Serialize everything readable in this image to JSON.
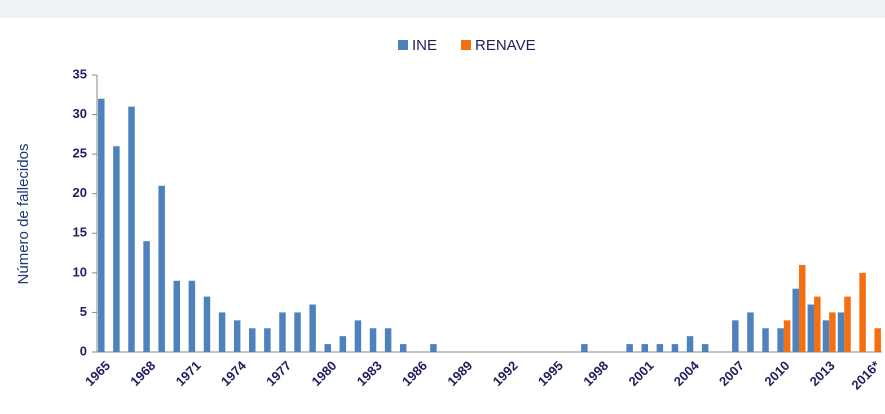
{
  "chart_data": {
    "type": "bar",
    "y_label": "Número de fallecidos",
    "categories": [
      "1965",
      null,
      null,
      "1968",
      null,
      null,
      "1971",
      null,
      null,
      "1974",
      null,
      null,
      "1977",
      null,
      null,
      "1980",
      null,
      null,
      "1983",
      null,
      null,
      "1986",
      null,
      null,
      "1989",
      null,
      null,
      "1992",
      null,
      null,
      "1995",
      null,
      null,
      "1998",
      null,
      null,
      "2001",
      null,
      null,
      "2004",
      null,
      null,
      "2007",
      null,
      null,
      "2010",
      null,
      null,
      "2013",
      null,
      null,
      "2016*"
    ],
    "series": [
      {
        "name": "INE",
        "color": "#4f81bd",
        "values": [
          32,
          26,
          31,
          14,
          21,
          9,
          9,
          7,
          5,
          4,
          3,
          3,
          5,
          5,
          6,
          1,
          2,
          4,
          3,
          3,
          1,
          0,
          1,
          0,
          0,
          0,
          0,
          0,
          0,
          0,
          0,
          0,
          1,
          0,
          0,
          1,
          1,
          1,
          1,
          2,
          1,
          0,
          4,
          5,
          3,
          3,
          8,
          6,
          4,
          5,
          null,
          null
        ]
      },
      {
        "name": "RENAVE",
        "color": "#f36f12",
        "values": [
          null,
          null,
          null,
          null,
          null,
          null,
          null,
          null,
          null,
          null,
          null,
          null,
          null,
          null,
          null,
          null,
          null,
          null,
          null,
          null,
          null,
          null,
          null,
          null,
          null,
          null,
          null,
          null,
          null,
          null,
          null,
          null,
          null,
          null,
          null,
          null,
          null,
          null,
          null,
          null,
          null,
          null,
          null,
          null,
          null,
          4,
          11,
          7,
          5,
          7,
          10,
          3
        ]
      }
    ],
    "ylim": [
      0,
      35
    ],
    "yticks": [
      0,
      5,
      10,
      15,
      20,
      25,
      30,
      35
    ],
    "grid": false,
    "legend": "top"
  }
}
